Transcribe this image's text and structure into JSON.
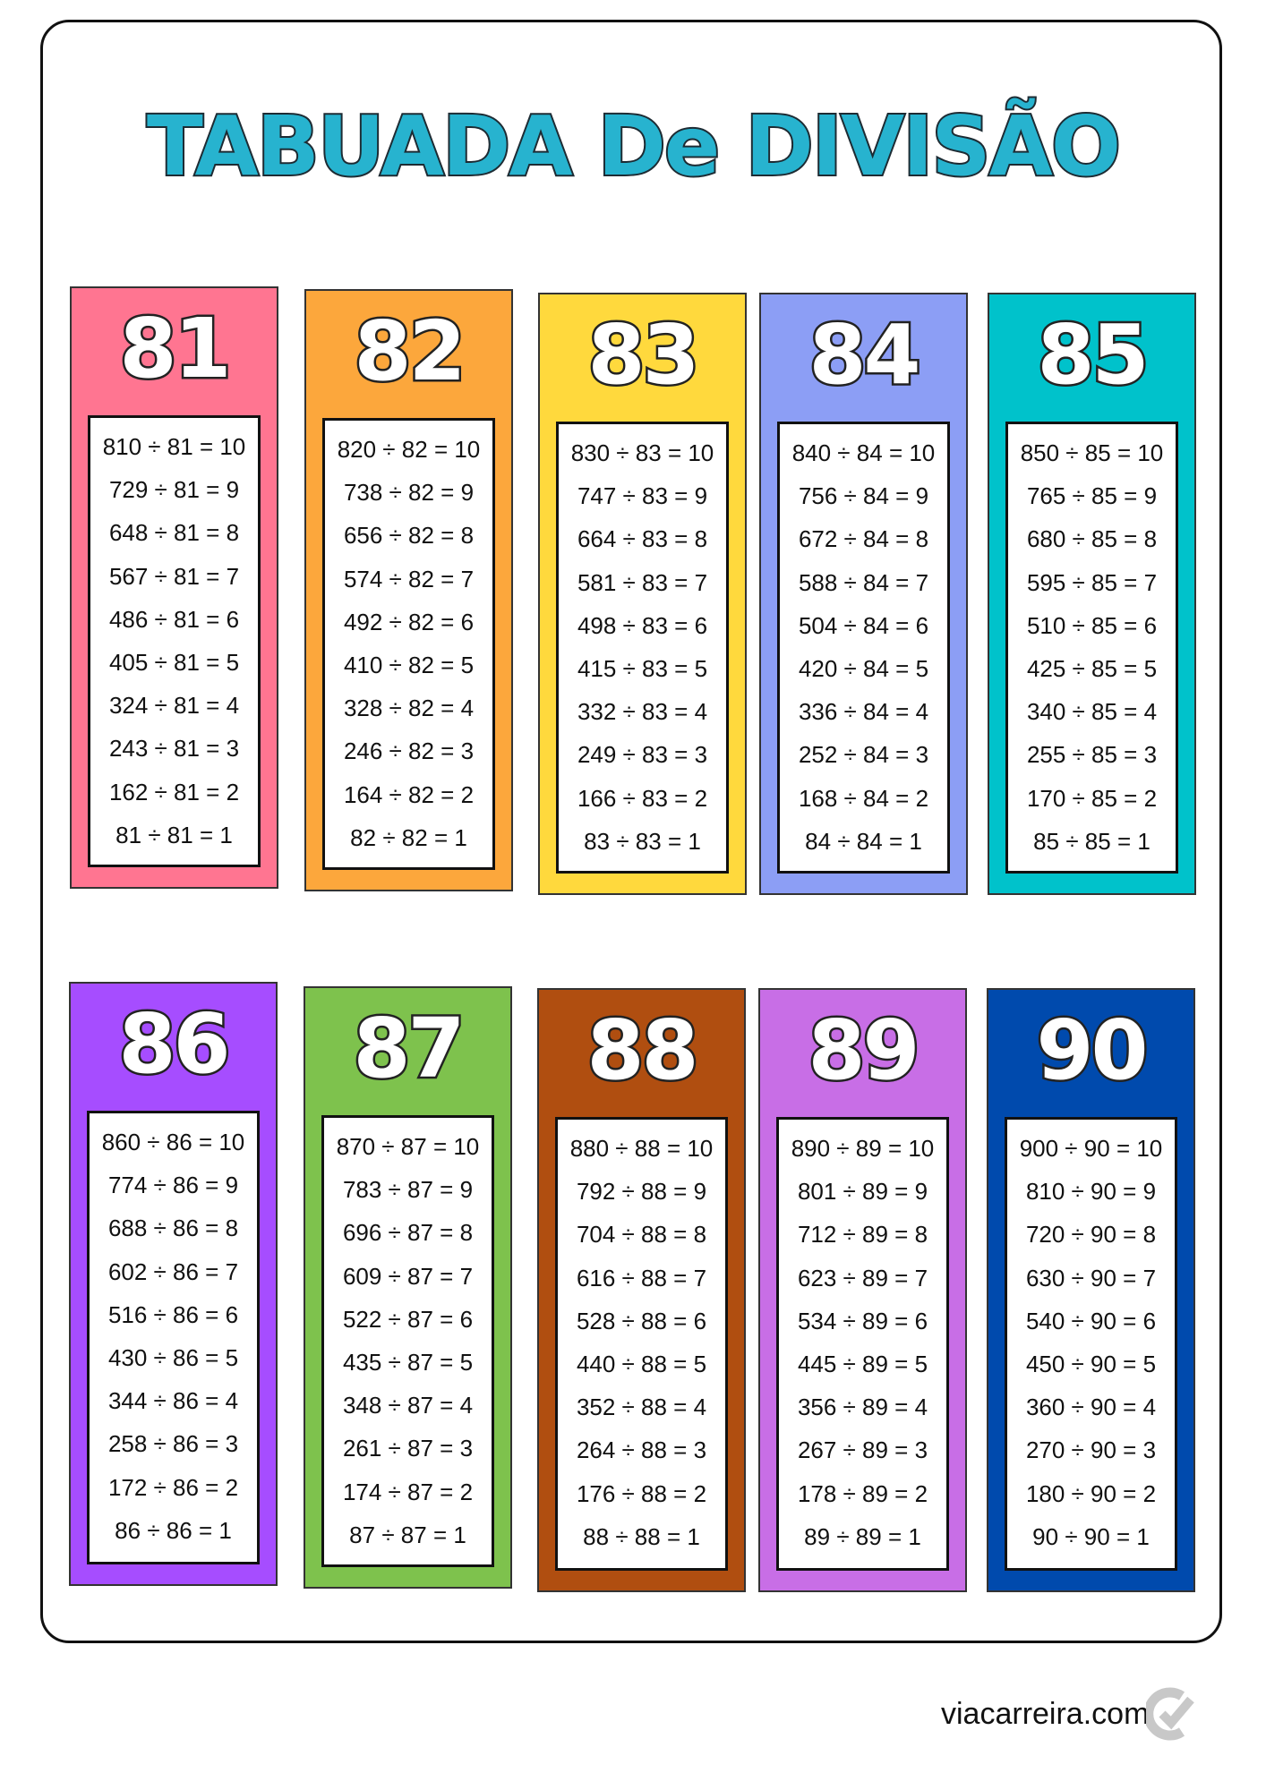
{
  "title": "TABUADA De DIVISÃO",
  "footer": {
    "site": "viacarreira.com",
    "logo_icon": "check-c-logo-icon"
  },
  "cards": [
    {
      "number": "81",
      "color": "#ff7591",
      "equations": [
        "810 ÷ 81 = 10",
        "729 ÷ 81 = 9",
        "648 ÷ 81 = 8",
        "567 ÷ 81 = 7",
        "486 ÷ 81 = 6",
        "405 ÷ 81 = 5",
        "324 ÷ 81 = 4",
        "243 ÷ 81 = 3",
        "162 ÷ 81 = 2",
        "81 ÷ 81 = 1"
      ]
    },
    {
      "number": "82",
      "color": "#fca73c",
      "equations": [
        "820 ÷ 82 = 10",
        "738 ÷ 82 = 9",
        "656 ÷ 82 = 8",
        "574 ÷ 82 = 7",
        "492 ÷ 82 = 6",
        "410 ÷ 82 = 5",
        "328 ÷ 82 = 4",
        "246 ÷ 82 = 3",
        "164 ÷ 82 = 2",
        "82 ÷ 82 = 1"
      ]
    },
    {
      "number": "83",
      "color": "#ffd93d",
      "equations": [
        "830 ÷ 83 = 10",
        "747 ÷ 83 = 9",
        "664 ÷ 83 = 8",
        "581 ÷ 83 = 7",
        "498 ÷ 83 = 6",
        "415 ÷ 83 = 5",
        "332 ÷ 83 = 4",
        "249 ÷ 83 = 3",
        "166 ÷ 83 = 2",
        "83 ÷ 83 = 1"
      ]
    },
    {
      "number": "84",
      "color": "#8c9ef5",
      "equations": [
        "840 ÷ 84 = 10",
        "756 ÷ 84 = 9",
        "672 ÷ 84 = 8",
        "588 ÷ 84 = 7",
        "504 ÷ 84 = 6",
        "420 ÷ 84 = 5",
        "336 ÷ 84 = 4",
        "252 ÷ 84 = 3",
        "168 ÷ 84 = 2",
        "84 ÷ 84 = 1"
      ]
    },
    {
      "number": "85",
      "color": "#00c2cb",
      "equations": [
        "850 ÷ 85 = 10",
        "765 ÷ 85 = 9",
        "680 ÷ 85 = 8",
        "595 ÷ 85 = 7",
        "510 ÷ 85 = 6",
        "425 ÷ 85 = 5",
        "340 ÷ 85 = 4",
        "255 ÷ 85 = 3",
        "170 ÷ 85 = 2",
        "85 ÷ 85 = 1"
      ]
    },
    {
      "number": "86",
      "color": "#a64dff",
      "equations": [
        "860 ÷ 86 = 10",
        "774 ÷ 86 = 9",
        "688 ÷ 86 = 8",
        "602 ÷ 86 = 7",
        "516 ÷ 86 = 6",
        "430 ÷ 86 = 5",
        "344 ÷ 86 = 4",
        "258 ÷ 86 = 3",
        "172 ÷ 86 = 2",
        "86 ÷ 86 = 1"
      ]
    },
    {
      "number": "87",
      "color": "#7ec24d",
      "equations": [
        "870 ÷ 87 = 10",
        "783 ÷ 87 = 9",
        "696 ÷ 87 = 8",
        "609 ÷ 87 = 7",
        "522 ÷ 87 = 6",
        "435 ÷ 87 = 5",
        "348 ÷ 87 = 4",
        "261 ÷ 87 = 3",
        "174 ÷ 87 = 2",
        "87 ÷ 87 = 1"
      ]
    },
    {
      "number": "88",
      "color": "#b04e10",
      "equations": [
        "880 ÷ 88 = 10",
        "792 ÷ 88 = 9",
        "704 ÷ 88 = 8",
        "616 ÷ 88 = 7",
        "528 ÷ 88 = 6",
        "440 ÷ 88 = 5",
        "352 ÷ 88 = 4",
        "264 ÷ 88 = 3",
        "176 ÷ 88 = 2",
        "88 ÷ 88 = 1"
      ]
    },
    {
      "number": "89",
      "color": "#c86ee6",
      "equations": [
        "890 ÷ 89 = 10",
        "801 ÷ 89 = 9",
        "712 ÷ 89 = 8",
        "623 ÷ 89 = 7",
        "534 ÷ 89 = 6",
        "445 ÷ 89 = 5",
        "356 ÷ 89 = 4",
        "267 ÷ 89 = 3",
        "178 ÷ 89 = 2",
        "89 ÷ 89 = 1"
      ]
    },
    {
      "number": "90",
      "color": "#004aad",
      "equations": [
        "900 ÷ 90 = 10",
        "810 ÷ 90 = 9",
        "720 ÷ 90 = 8",
        "630 ÷ 90 = 7",
        "540 ÷ 90 = 6",
        "450 ÷ 90 = 5",
        "360 ÷ 90 = 4",
        "270 ÷ 90 = 3",
        "180 ÷ 90 = 2",
        "90 ÷ 90 = 1"
      ]
    }
  ]
}
